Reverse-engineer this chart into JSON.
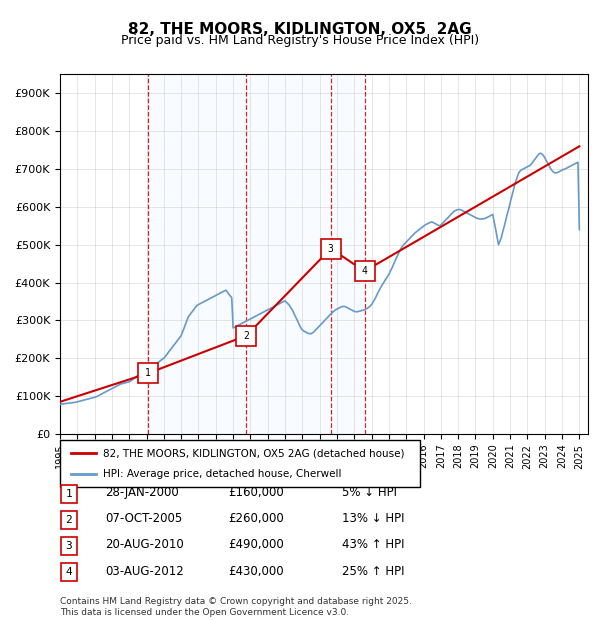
{
  "title": "82, THE MOORS, KIDLINGTON, OX5  2AG",
  "subtitle": "Price paid vs. HM Land Registry's House Price Index (HPI)",
  "legend_house": "82, THE MOORS, KIDLINGTON, OX5 2AG (detached house)",
  "legend_hpi": "HPI: Average price, detached house, Cherwell",
  "footnote": "Contains HM Land Registry data © Crown copyright and database right 2025.\nThis data is licensed under the Open Government Licence v3.0.",
  "ylim": [
    0,
    950000
  ],
  "yticks": [
    0,
    100000,
    200000,
    300000,
    400000,
    500000,
    600000,
    700000,
    800000,
    900000
  ],
  "ytick_labels": [
    "£0",
    "£100K",
    "£200K",
    "£300K",
    "£400K",
    "£500K",
    "£600K",
    "£700K",
    "£800K",
    "£900K"
  ],
  "transactions": [
    {
      "num": 1,
      "date": "28-JAN-2000",
      "price": 160000,
      "pct": "5%",
      "dir": "↓",
      "x_year": 2000.07
    },
    {
      "num": 2,
      "date": "07-OCT-2005",
      "price": 260000,
      "pct": "13%",
      "dir": "↓",
      "x_year": 2005.77
    },
    {
      "num": 3,
      "date": "20-AUG-2010",
      "price": 490000,
      "pct": "43%",
      "dir": "↑",
      "x_year": 2010.64
    },
    {
      "num": 4,
      "date": "03-AUG-2012",
      "price": 430000,
      "pct": "25%",
      "dir": "↑",
      "x_year": 2012.59
    }
  ],
  "hpi_color": "#6699cc",
  "house_color": "#cc0000",
  "vline_color": "#cc0000",
  "shade_color": "#ddeeff",
  "grid_color": "#cccccc",
  "box_color": "#cc0000",
  "background_color": "#ffffff",
  "hpi_data": {
    "years": [
      1995.0,
      1995.08,
      1995.17,
      1995.25,
      1995.33,
      1995.42,
      1995.5,
      1995.58,
      1995.67,
      1995.75,
      1995.83,
      1995.92,
      1996.0,
      1996.08,
      1996.17,
      1996.25,
      1996.33,
      1996.42,
      1996.5,
      1996.58,
      1996.67,
      1996.75,
      1996.83,
      1996.92,
      1997.0,
      1997.08,
      1997.17,
      1997.25,
      1997.33,
      1997.42,
      1997.5,
      1997.58,
      1997.67,
      1997.75,
      1997.83,
      1997.92,
      1998.0,
      1998.08,
      1998.17,
      1998.25,
      1998.33,
      1998.42,
      1998.5,
      1998.58,
      1998.67,
      1998.75,
      1998.83,
      1998.92,
      1999.0,
      1999.08,
      1999.17,
      1999.25,
      1999.33,
      1999.42,
      1999.5,
      1999.58,
      1999.67,
      1999.75,
      1999.83,
      1999.92,
      2000.0,
      2000.08,
      2000.17,
      2000.25,
      2000.33,
      2000.42,
      2000.5,
      2000.58,
      2000.67,
      2000.75,
      2000.83,
      2000.92,
      2001.0,
      2001.08,
      2001.17,
      2001.25,
      2001.33,
      2001.42,
      2001.5,
      2001.58,
      2001.67,
      2001.75,
      2001.83,
      2001.92,
      2002.0,
      2002.08,
      2002.17,
      2002.25,
      2002.33,
      2002.42,
      2002.5,
      2002.58,
      2002.67,
      2002.75,
      2002.83,
      2002.92,
      2003.0,
      2003.08,
      2003.17,
      2003.25,
      2003.33,
      2003.42,
      2003.5,
      2003.58,
      2003.67,
      2003.75,
      2003.83,
      2003.92,
      2004.0,
      2004.08,
      2004.17,
      2004.25,
      2004.33,
      2004.42,
      2004.5,
      2004.58,
      2004.67,
      2004.75,
      2004.83,
      2004.92,
      2005.0,
      2005.08,
      2005.17,
      2005.25,
      2005.33,
      2005.42,
      2005.5,
      2005.58,
      2005.67,
      2005.75,
      2005.83,
      2005.92,
      2006.0,
      2006.08,
      2006.17,
      2006.25,
      2006.33,
      2006.42,
      2006.5,
      2006.58,
      2006.67,
      2006.75,
      2006.83,
      2006.92,
      2007.0,
      2007.08,
      2007.17,
      2007.25,
      2007.33,
      2007.42,
      2007.5,
      2007.58,
      2007.67,
      2007.75,
      2007.83,
      2007.92,
      2008.0,
      2008.08,
      2008.17,
      2008.25,
      2008.33,
      2008.42,
      2008.5,
      2008.58,
      2008.67,
      2008.75,
      2008.83,
      2008.92,
      2009.0,
      2009.08,
      2009.17,
      2009.25,
      2009.33,
      2009.42,
      2009.5,
      2009.58,
      2009.67,
      2009.75,
      2009.83,
      2009.92,
      2010.0,
      2010.08,
      2010.17,
      2010.25,
      2010.33,
      2010.42,
      2010.5,
      2010.58,
      2010.67,
      2010.75,
      2010.83,
      2010.92,
      2011.0,
      2011.08,
      2011.17,
      2011.25,
      2011.33,
      2011.42,
      2011.5,
      2011.58,
      2011.67,
      2011.75,
      2011.83,
      2011.92,
      2012.0,
      2012.08,
      2012.17,
      2012.25,
      2012.33,
      2012.42,
      2012.5,
      2012.58,
      2012.67,
      2012.75,
      2012.83,
      2012.92,
      2013.0,
      2013.08,
      2013.17,
      2013.25,
      2013.33,
      2013.42,
      2013.5,
      2013.58,
      2013.67,
      2013.75,
      2013.83,
      2013.92,
      2014.0,
      2014.08,
      2014.17,
      2014.25,
      2014.33,
      2014.42,
      2014.5,
      2014.58,
      2014.67,
      2014.75,
      2014.83,
      2014.92,
      2015.0,
      2015.08,
      2015.17,
      2015.25,
      2015.33,
      2015.42,
      2015.5,
      2015.58,
      2015.67,
      2015.75,
      2015.83,
      2015.92,
      2016.0,
      2016.08,
      2016.17,
      2016.25,
      2016.33,
      2016.42,
      2016.5,
      2016.58,
      2016.67,
      2016.75,
      2016.83,
      2016.92,
      2017.0,
      2017.08,
      2017.17,
      2017.25,
      2017.33,
      2017.42,
      2017.5,
      2017.58,
      2017.67,
      2017.75,
      2017.83,
      2017.92,
      2018.0,
      2018.08,
      2018.17,
      2018.25,
      2018.33,
      2018.42,
      2018.5,
      2018.58,
      2018.67,
      2018.75,
      2018.83,
      2018.92,
      2019.0,
      2019.08,
      2019.17,
      2019.25,
      2019.33,
      2019.42,
      2019.5,
      2019.58,
      2019.67,
      2019.75,
      2019.83,
      2019.92,
      2020.0,
      2020.08,
      2020.17,
      2020.25,
      2020.33,
      2020.42,
      2020.5,
      2020.58,
      2020.67,
      2020.75,
      2020.83,
      2020.92,
      2021.0,
      2021.08,
      2021.17,
      2021.25,
      2021.33,
      2021.42,
      2021.5,
      2021.58,
      2021.67,
      2021.75,
      2021.83,
      2021.92,
      2022.0,
      2022.08,
      2022.17,
      2022.25,
      2022.33,
      2022.42,
      2022.5,
      2022.58,
      2022.67,
      2022.75,
      2022.83,
      2022.92,
      2023.0,
      2023.08,
      2023.17,
      2023.25,
      2023.33,
      2023.42,
      2023.5,
      2023.58,
      2023.67,
      2023.75,
      2023.83,
      2023.92,
      2024.0,
      2024.08,
      2024.17,
      2024.25,
      2024.33,
      2024.42,
      2024.5,
      2024.58,
      2024.67,
      2024.75,
      2024.83,
      2024.92,
      2025.0
    ],
    "values": [
      78000,
      79000,
      79500,
      80000,
      80500,
      81000,
      81500,
      82000,
      82500,
      83000,
      83500,
      84000,
      85000,
      86000,
      87000,
      88000,
      89000,
      90000,
      91000,
      92000,
      93000,
      94000,
      95000,
      96000,
      97000,
      98000,
      100000,
      102000,
      104000,
      106000,
      108000,
      110000,
      112000,
      114000,
      116000,
      118000,
      120000,
      122000,
      124000,
      126000,
      128000,
      130000,
      132000,
      133000,
      134000,
      135000,
      136000,
      137000,
      138000,
      140000,
      143000,
      146000,
      149000,
      152000,
      155000,
      158000,
      161000,
      164000,
      167000,
      170000,
      168000,
      169000,
      171000,
      174000,
      177000,
      180000,
      183000,
      186000,
      189000,
      192000,
      195000,
      198000,
      200000,
      205000,
      210000,
      215000,
      220000,
      225000,
      230000,
      235000,
      240000,
      245000,
      250000,
      255000,
      260000,
      270000,
      280000,
      290000,
      300000,
      310000,
      315000,
      320000,
      325000,
      330000,
      335000,
      340000,
      342000,
      344000,
      346000,
      348000,
      350000,
      352000,
      354000,
      356000,
      358000,
      360000,
      362000,
      364000,
      366000,
      368000,
      370000,
      372000,
      374000,
      376000,
      378000,
      380000,
      375000,
      370000,
      365000,
      360000,
      280000,
      282000,
      284000,
      286000,
      288000,
      290000,
      292000,
      294000,
      296000,
      298000,
      300000,
      302000,
      304000,
      306000,
      308000,
      310000,
      312000,
      314000,
      316000,
      318000,
      320000,
      322000,
      324000,
      326000,
      328000,
      330000,
      332000,
      334000,
      336000,
      338000,
      340000,
      342000,
      344000,
      346000,
      348000,
      350000,
      352000,
      348000,
      344000,
      340000,
      334000,
      328000,
      320000,
      312000,
      304000,
      296000,
      288000,
      280000,
      275000,
      272000,
      270000,
      268000,
      266000,
      265000,
      265000,
      267000,
      270000,
      274000,
      278000,
      282000,
      286000,
      290000,
      294000,
      298000,
      302000,
      306000,
      310000,
      314000,
      318000,
      322000,
      325000,
      328000,
      330000,
      332000,
      334000,
      336000,
      337000,
      337000,
      336000,
      334000,
      332000,
      330000,
      328000,
      326000,
      324000,
      323000,
      323000,
      324000,
      325000,
      326000,
      327000,
      328000,
      330000,
      332000,
      335000,
      338000,
      342000,
      348000,
      355000,
      362000,
      370000,
      378000,
      385000,
      392000,
      398000,
      404000,
      410000,
      416000,
      422000,
      430000,
      438000,
      446000,
      455000,
      464000,
      472000,
      480000,
      488000,
      494000,
      499000,
      503000,
      507000,
      511000,
      515000,
      519000,
      523000,
      527000,
      531000,
      534000,
      537000,
      540000,
      543000,
      546000,
      549000,
      552000,
      554000,
      556000,
      558000,
      560000,
      560000,
      558000,
      556000,
      554000,
      552000,
      550000,
      552000,
      556000,
      560000,
      564000,
      568000,
      572000,
      576000,
      580000,
      584000,
      588000,
      590000,
      592000,
      593000,
      593000,
      592000,
      590000,
      588000,
      586000,
      584000,
      582000,
      580000,
      578000,
      576000,
      574000,
      572000,
      570000,
      569000,
      568000,
      568000,
      568000,
      569000,
      570000,
      572000,
      574000,
      576000,
      578000,
      580000,
      560000,
      540000,
      520000,
      500000,
      510000,
      520000,
      535000,
      550000,
      565000,
      580000,
      595000,
      610000,
      625000,
      640000,
      655000,
      668000,
      680000,
      690000,
      695000,
      698000,
      700000,
      702000,
      704000,
      706000,
      708000,
      710000,
      715000,
      720000,
      725000,
      730000,
      735000,
      740000,
      742000,
      740000,
      736000,
      730000,
      723000,
      716000,
      709000,
      702000,
      696000,
      692000,
      690000,
      690000,
      691000,
      693000,
      695000,
      697000,
      699000,
      700000,
      702000,
      704000,
      706000,
      708000,
      710000,
      712000,
      714000,
      716000,
      718000,
      540000
    ]
  },
  "house_data": {
    "years": [
      1995.0,
      2000.07,
      2005.77,
      2010.64,
      2012.59,
      2025.0
    ],
    "values": [
      85000,
      160000,
      260000,
      490000,
      430000,
      760000
    ]
  },
  "x_start": 1995.0,
  "x_end": 2025.5,
  "xtick_years": [
    1995,
    1996,
    1997,
    1998,
    1999,
    2000,
    2001,
    2002,
    2003,
    2004,
    2005,
    2006,
    2007,
    2008,
    2009,
    2010,
    2011,
    2012,
    2013,
    2014,
    2015,
    2016,
    2017,
    2018,
    2019,
    2020,
    2021,
    2022,
    2023,
    2024,
    2025
  ]
}
